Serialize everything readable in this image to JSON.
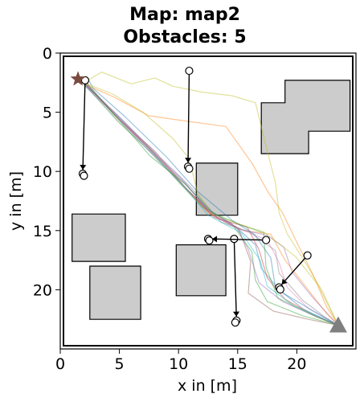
{
  "title_line1": "Map: map2",
  "title_line2": "Obstacles: 5",
  "chart_data": {
    "type": "scatter",
    "title": "Map: map2 Obstacles: 5",
    "xlabel": "x in [m]",
    "ylabel": "y in [m]",
    "xlim": [
      0,
      25
    ],
    "ylim": [
      25,
      0
    ],
    "y_inverted": true,
    "xticks": [
      0,
      5,
      10,
      15,
      20
    ],
    "yticks": [
      0,
      5,
      10,
      15,
      20
    ],
    "grid": false,
    "start": {
      "x": 1.5,
      "y": 2.2,
      "marker": "star",
      "color": "#7b4a3f"
    },
    "goal": {
      "x": 23.5,
      "y": 23.0,
      "marker": "triangle",
      "color": "#7f7f7f"
    },
    "static_obstacles": [
      {
        "name": "obstacle-upper-right",
        "polygon": [
          [
            17.0,
            4.2
          ],
          [
            19.0,
            4.2
          ],
          [
            19.0,
            2.3
          ],
          [
            24.5,
            2.3
          ],
          [
            24.5,
            6.6
          ],
          [
            21.0,
            6.6
          ],
          [
            21.0,
            8.5
          ],
          [
            17.0,
            8.5
          ]
        ]
      },
      {
        "name": "obstacle-center",
        "polygon": [
          [
            11.5,
            9.3
          ],
          [
            15.0,
            9.3
          ],
          [
            15.0,
            13.7
          ],
          [
            11.5,
            13.7
          ]
        ]
      },
      {
        "name": "obstacle-left",
        "polygon": [
          [
            1.0,
            13.6
          ],
          [
            5.5,
            13.6
          ],
          [
            5.5,
            17.6
          ],
          [
            1.0,
            17.6
          ]
        ]
      },
      {
        "name": "obstacle-bottom-center",
        "polygon": [
          [
            9.8,
            16.2
          ],
          [
            14.0,
            16.2
          ],
          [
            14.0,
            20.5
          ],
          [
            9.8,
            20.5
          ]
        ]
      },
      {
        "name": "obstacle-bottom-left",
        "polygon": [
          [
            2.5,
            18.0
          ],
          [
            6.8,
            18.0
          ],
          [
            6.8,
            22.5
          ],
          [
            2.5,
            22.5
          ]
        ]
      }
    ],
    "dynamic_obstacles": [
      {
        "from": [
          2.1,
          2.3
        ],
        "to": [
          1.9,
          10.2
        ]
      },
      {
        "from": [
          10.9,
          1.5
        ],
        "to": [
          10.8,
          9.6
        ]
      },
      {
        "from": [
          14.7,
          15.7
        ],
        "to": [
          14.9,
          22.6
        ]
      },
      {
        "from": [
          17.4,
          15.8
        ],
        "to": [
          12.5,
          15.7
        ]
      },
      {
        "from": [
          20.9,
          17.1
        ],
        "to": [
          18.5,
          19.8
        ]
      }
    ],
    "trajectories": [
      {
        "color": "#1f77b4",
        "points": [
          [
            2.0,
            2.5
          ],
          [
            5,
            5.5
          ],
          [
            8,
            8.6
          ],
          [
            10.5,
            11.0
          ],
          [
            12.5,
            13.2
          ],
          [
            15,
            14.8
          ],
          [
            16.5,
            16.2
          ],
          [
            17,
            18.2
          ],
          [
            18.5,
            20.0
          ],
          [
            20.5,
            21.6
          ],
          [
            22.5,
            22.6
          ],
          [
            23.5,
            23.0
          ]
        ]
      },
      {
        "color": "#ff7f0e",
        "points": [
          [
            2.0,
            2.6
          ],
          [
            5,
            5.9
          ],
          [
            8,
            8.7
          ],
          [
            10,
            10.8
          ],
          [
            12.5,
            13.5
          ],
          [
            15.5,
            15.0
          ],
          [
            17.8,
            15.3
          ],
          [
            19,
            17.5
          ],
          [
            20.8,
            19.8
          ],
          [
            22.5,
            22.0
          ],
          [
            23.5,
            23.0
          ]
        ]
      },
      {
        "color": "#2ca02c",
        "points": [
          [
            2.1,
            2.4
          ],
          [
            4.5,
            5.2
          ],
          [
            7.5,
            8.1
          ],
          [
            10,
            10.9
          ],
          [
            12,
            13.0
          ],
          [
            14.5,
            14.4
          ],
          [
            16.2,
            16.8
          ],
          [
            16.5,
            19.2
          ],
          [
            17.5,
            21.0
          ],
          [
            20.5,
            22.2
          ],
          [
            23.5,
            23.0
          ]
        ]
      },
      {
        "color": "#d62728",
        "points": [
          [
            2.0,
            2.5
          ],
          [
            5,
            5.6
          ],
          [
            8,
            8.5
          ],
          [
            10.5,
            11.3
          ],
          [
            13,
            13.9
          ],
          [
            15.8,
            14.7
          ],
          [
            16.8,
            16.6
          ],
          [
            17.5,
            19.0
          ],
          [
            19,
            20.8
          ],
          [
            21.5,
            22.2
          ],
          [
            23.5,
            23.0
          ]
        ]
      },
      {
        "color": "#9467bd",
        "points": [
          [
            2.0,
            2.7
          ],
          [
            4.8,
            5.4
          ],
          [
            7.8,
            8.6
          ],
          [
            10.3,
            11.1
          ],
          [
            12.8,
            13.6
          ],
          [
            15.2,
            14.9
          ],
          [
            17.5,
            15.4
          ],
          [
            18.9,
            16.4
          ],
          [
            19.6,
            18.5
          ],
          [
            21.3,
            20.6
          ],
          [
            23.5,
            23.0
          ]
        ]
      },
      {
        "color": "#8c564b",
        "points": [
          [
            2.0,
            2.5
          ],
          [
            5,
            5.6
          ],
          [
            8,
            8.3
          ],
          [
            10.6,
            11.4
          ],
          [
            13.2,
            13.9
          ],
          [
            15.1,
            14.9
          ],
          [
            16.1,
            17.6
          ],
          [
            15.9,
            20.3
          ],
          [
            18,
            21.8
          ],
          [
            21,
            22.5
          ],
          [
            23.5,
            23.0
          ]
        ]
      },
      {
        "color": "#e377c2",
        "points": [
          [
            2.1,
            2.4
          ],
          [
            5,
            5.6
          ],
          [
            8,
            8.6
          ],
          [
            10.7,
            11.2
          ],
          [
            13,
            13.8
          ],
          [
            15.5,
            15.0
          ],
          [
            17.5,
            15.8
          ],
          [
            18.5,
            17.7
          ],
          [
            19.2,
            19.8
          ],
          [
            21,
            21.6
          ],
          [
            23.5,
            23.0
          ]
        ]
      },
      {
        "color": "#7f7f7f",
        "points": [
          [
            2.0,
            2.6
          ],
          [
            5.2,
            5.6
          ],
          [
            8.4,
            8.9
          ],
          [
            11,
            11.3
          ],
          [
            13.6,
            14.3
          ],
          [
            16,
            15.1
          ],
          [
            18.2,
            16.7
          ],
          [
            18.5,
            18.6
          ],
          [
            20.5,
            20.9
          ],
          [
            22.5,
            22.4
          ],
          [
            23.5,
            23.0
          ]
        ]
      },
      {
        "color": "#bcbd22",
        "points": [
          [
            2.0,
            2.5
          ],
          [
            3.5,
            1.6
          ],
          [
            6,
            2.6
          ],
          [
            8,
            2.1
          ],
          [
            9.5,
            2.8
          ],
          [
            12,
            3.3
          ],
          [
            14.5,
            3.6
          ],
          [
            16.5,
            4.2
          ],
          [
            17.3,
            7.5
          ],
          [
            18.2,
            11.0
          ],
          [
            18.5,
            13.5
          ],
          [
            19.2,
            15.3
          ],
          [
            20.6,
            17.5
          ],
          [
            22.2,
            20.2
          ],
          [
            23.5,
            23.0
          ]
        ]
      },
      {
        "color": "#17becf",
        "points": [
          [
            2.0,
            2.6
          ],
          [
            4.8,
            5.7
          ],
          [
            8,
            8.7
          ],
          [
            10.4,
            11.2
          ],
          [
            12.5,
            13.7
          ],
          [
            15.3,
            15.2
          ],
          [
            16.9,
            17.5
          ],
          [
            17.5,
            19.7
          ],
          [
            19.8,
            21.4
          ],
          [
            22,
            22.3
          ],
          [
            23.5,
            23.0
          ]
        ]
      },
      {
        "color": "#1f77b4",
        "points": [
          [
            2.3,
            2.1
          ],
          [
            2.8,
            3.0
          ],
          [
            5.5,
            5.4
          ],
          [
            9,
            8.8
          ],
          [
            11.5,
            11.6
          ],
          [
            14.5,
            14.1
          ],
          [
            16.4,
            15.3
          ],
          [
            17.8,
            17.3
          ],
          [
            18.2,
            19.9
          ],
          [
            20.9,
            21.5
          ],
          [
            23.5,
            23.0
          ]
        ]
      },
      {
        "color": "#bcbd22",
        "points": [
          [
            2.0,
            2.5
          ],
          [
            4.5,
            3.5
          ],
          [
            7,
            5.0
          ],
          [
            9.5,
            7.2
          ],
          [
            10.8,
            8.8
          ],
          [
            11.2,
            10.2
          ],
          [
            11.6,
            11.8
          ],
          [
            12.8,
            13.6
          ],
          [
            15.6,
            14.6
          ],
          [
            17.2,
            15.1
          ],
          [
            19.9,
            17.2
          ],
          [
            21.8,
            19.6
          ],
          [
            23.5,
            23.0
          ]
        ]
      },
      {
        "color": "#ff7f0e",
        "points": [
          [
            2.0,
            2.6
          ],
          [
            4.5,
            3.7
          ],
          [
            7.5,
            5.3
          ],
          [
            11,
            5.8
          ],
          [
            14,
            6.2
          ],
          [
            16.2,
            9.3
          ],
          [
            17.6,
            11.8
          ],
          [
            18.8,
            13.5
          ],
          [
            20.1,
            16.2
          ],
          [
            21.4,
            18.8
          ],
          [
            22.5,
            21.4
          ],
          [
            23.5,
            23.0
          ]
        ]
      },
      {
        "color": "#9467bd",
        "points": [
          [
            2.0,
            2.5
          ],
          [
            4.8,
            5.2
          ],
          [
            7.7,
            8.1
          ],
          [
            10.2,
            10.5
          ],
          [
            12.4,
            13.2
          ],
          [
            14.9,
            14.7
          ],
          [
            15.9,
            16.6
          ],
          [
            16.8,
            19.4
          ],
          [
            18.8,
            21.0
          ],
          [
            21,
            22.0
          ],
          [
            23.5,
            23.0
          ]
        ]
      },
      {
        "color": "#2ca02c",
        "points": [
          [
            2.2,
            2.5
          ],
          [
            5,
            5.7
          ],
          [
            7.6,
            8.7
          ],
          [
            10.6,
            11.1
          ],
          [
            12.9,
            13.5
          ],
          [
            15.2,
            14.5
          ],
          [
            17.2,
            15.2
          ],
          [
            17.4,
            18.1
          ],
          [
            18.4,
            20.7
          ],
          [
            21.7,
            22.3
          ],
          [
            23.5,
            23.0
          ]
        ]
      }
    ]
  }
}
